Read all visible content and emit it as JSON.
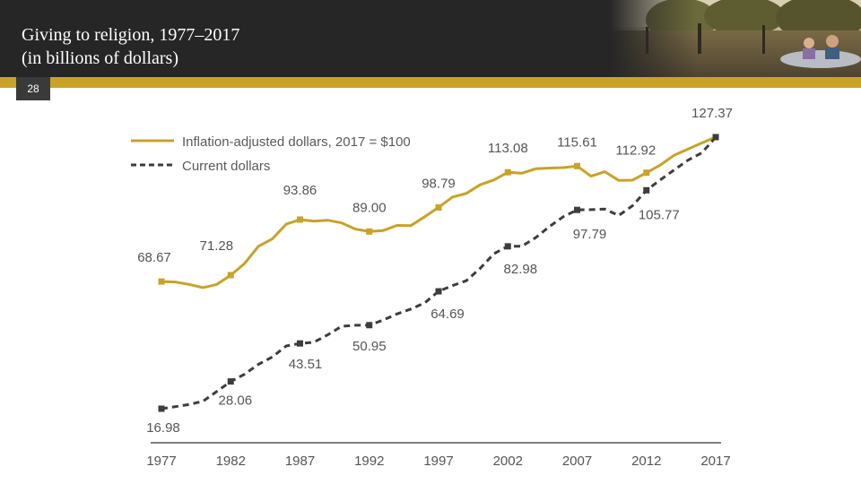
{
  "header": {
    "title_line1": "Giving to religion, 1977–2017",
    "title_line2": "(in billions of dollars)",
    "page_number": "28"
  },
  "colors": {
    "gold": "#c9a227",
    "dark": "#3d3d3d",
    "header_bg": "#262626"
  },
  "chart_data": {
    "type": "line",
    "title": "Giving to religion, 1977–2017 (in billions of dollars)",
    "categories": [
      "1977",
      "1982",
      "1987",
      "1992",
      "1997",
      "2002",
      "2007",
      "2012",
      "2017"
    ],
    "series": [
      {
        "name": "Inflation-adjusted dollars, 2017 = $100",
        "style": "solid",
        "color": "#c9a227",
        "labeled": [
          {
            "year": 1977,
            "value": 68.67,
            "label": "68.67"
          },
          {
            "year": 1982,
            "value": 71.28,
            "label": "71.28"
          },
          {
            "year": 1987,
            "value": 93.86,
            "label": "93.86"
          },
          {
            "year": 1992,
            "value": 89.0,
            "label": "89.00"
          },
          {
            "year": 1997,
            "value": 98.79,
            "label": "98.79"
          },
          {
            "year": 2002,
            "value": 113.08,
            "label": "113.08"
          },
          {
            "year": 2007,
            "value": 115.61,
            "label": "115.61"
          },
          {
            "year": 2012,
            "value": 112.92,
            "label": "112.92"
          },
          {
            "year": 2017,
            "value": 127.37,
            "label": "127.37"
          }
        ],
        "path": [
          [
            1977,
            68.67
          ],
          [
            1978,
            68.5
          ],
          [
            1979,
            67.5
          ],
          [
            1980,
            66.2
          ],
          [
            1981,
            67.5
          ],
          [
            1982,
            71.28
          ],
          [
            1983,
            76
          ],
          [
            1984,
            83
          ],
          [
            1985,
            86
          ],
          [
            1986,
            92
          ],
          [
            1987,
            93.86
          ],
          [
            1988,
            93.2
          ],
          [
            1989,
            93.6
          ],
          [
            1990,
            92.5
          ],
          [
            1991,
            90
          ],
          [
            1992,
            89.0
          ],
          [
            1993,
            89.4
          ],
          [
            1994,
            91.5
          ],
          [
            1995,
            91.4
          ],
          [
            1996,
            95
          ],
          [
            1997,
            98.79
          ],
          [
            1998,
            103
          ],
          [
            1999,
            104.5
          ],
          [
            2000,
            108
          ],
          [
            2001,
            110
          ],
          [
            2002,
            113.08
          ],
          [
            2003,
            112.7
          ],
          [
            2004,
            114.5
          ],
          [
            2005,
            114.8
          ],
          [
            2006,
            115
          ],
          [
            2007,
            115.61
          ],
          [
            2008,
            111.5
          ],
          [
            2009,
            113.3
          ],
          [
            2010,
            109.8
          ],
          [
            2011,
            109.9
          ],
          [
            2012,
            112.92
          ],
          [
            2013,
            116
          ],
          [
            2014,
            120
          ],
          [
            2015,
            122.5
          ],
          [
            2016,
            125
          ],
          [
            2017,
            127.37
          ]
        ]
      },
      {
        "name": "Current dollars",
        "style": "dashed",
        "color": "#3d3d3d",
        "labeled": [
          {
            "year": 1977,
            "value": 16.98,
            "label": "16.98"
          },
          {
            "year": 1982,
            "value": 28.06,
            "label": "28.06"
          },
          {
            "year": 1987,
            "value": 43.51,
            "label": "43.51"
          },
          {
            "year": 1992,
            "value": 50.95,
            "label": "50.95"
          },
          {
            "year": 1997,
            "value": 64.69,
            "label": "64.69"
          },
          {
            "year": 2002,
            "value": 82.98,
            "label": "82.98"
          },
          {
            "year": 2007,
            "value": 97.79,
            "label": "97.79"
          },
          {
            "year": 2012,
            "value": 105.77,
            "label": "105.77"
          },
          {
            "year": 2017,
            "value": 127.37,
            "label": ""
          }
        ],
        "path": [
          [
            1977,
            16.98
          ],
          [
            1978,
            17.8
          ],
          [
            1979,
            18.7
          ],
          [
            1980,
            20
          ],
          [
            1981,
            24
          ],
          [
            1982,
            28.06
          ],
          [
            1983,
            31
          ],
          [
            1984,
            35
          ],
          [
            1985,
            38
          ],
          [
            1986,
            42.5
          ],
          [
            1987,
            43.51
          ],
          [
            1988,
            44
          ],
          [
            1989,
            47
          ],
          [
            1990,
            50.5
          ],
          [
            1991,
            50.9
          ],
          [
            1992,
            50.95
          ],
          [
            1993,
            53
          ],
          [
            1994,
            55.5
          ],
          [
            1995,
            57.5
          ],
          [
            1996,
            60
          ],
          [
            1997,
            64.69
          ],
          [
            1998,
            67
          ],
          [
            1999,
            69
          ],
          [
            2000,
            74
          ],
          [
            2001,
            80
          ],
          [
            2002,
            82.98
          ],
          [
            2003,
            83
          ],
          [
            2004,
            86.5
          ],
          [
            2005,
            91
          ],
          [
            2006,
            95
          ],
          [
            2007,
            97.79
          ],
          [
            2008,
            97.9
          ],
          [
            2009,
            98.1
          ],
          [
            2010,
            95.5
          ],
          [
            2011,
            99.5
          ],
          [
            2012,
            105.77
          ],
          [
            2013,
            110
          ],
          [
            2014,
            114
          ],
          [
            2015,
            118
          ],
          [
            2016,
            121
          ],
          [
            2017,
            127.37
          ]
        ]
      }
    ],
    "xlabel": "",
    "ylabel": "",
    "ylim": [
      10,
      130
    ],
    "grid": false,
    "legend_position": "top-left"
  }
}
